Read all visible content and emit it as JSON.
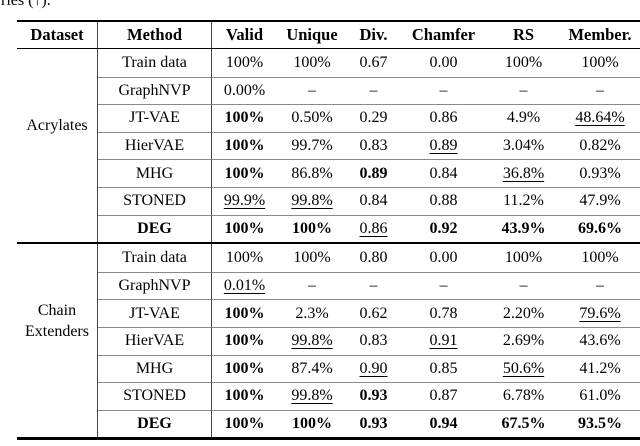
{
  "page": {
    "caption_fragment": "ries (↑)."
  },
  "table": {
    "colors": {
      "text": "#000000",
      "rule": "#000000",
      "inner_line": "#8a8a8a",
      "background": "#ffffff"
    },
    "headers": [
      "Dataset",
      "Method",
      "Valid",
      "Unique",
      "Div.",
      "Chamfer",
      "RS",
      "Member."
    ],
    "dash": "–",
    "sections": [
      {
        "dataset": "Acrylates",
        "rows": [
          {
            "method": "Train data",
            "cells": [
              {
                "v": "100%"
              },
              {
                "v": "100%"
              },
              {
                "v": "0.67"
              },
              {
                "v": "0.00"
              },
              {
                "v": "100%"
              },
              {
                "v": "100%"
              }
            ]
          },
          {
            "method": "GraphNVP",
            "cells": [
              {
                "v": "0.00%"
              },
              {
                "v": "–"
              },
              {
                "v": "–"
              },
              {
                "v": "–"
              },
              {
                "v": "–"
              },
              {
                "v": "–"
              }
            ]
          },
          {
            "method": "JT-VAE",
            "cells": [
              {
                "v": "100%",
                "b": true
              },
              {
                "v": "0.50%"
              },
              {
                "v": "0.29"
              },
              {
                "v": "0.86"
              },
              {
                "v": "4.9%"
              },
              {
                "v": "48.64%",
                "u": true
              }
            ]
          },
          {
            "method": "HierVAE",
            "cells": [
              {
                "v": "100%",
                "b": true
              },
              {
                "v": "99.7%"
              },
              {
                "v": "0.83"
              },
              {
                "v": "0.89",
                "u": true
              },
              {
                "v": "3.04%"
              },
              {
                "v": "0.82%"
              }
            ]
          },
          {
            "method": "MHG",
            "cells": [
              {
                "v": "100%",
                "b": true
              },
              {
                "v": "86.8%"
              },
              {
                "v": "0.89",
                "b": true
              },
              {
                "v": "0.84"
              },
              {
                "v": "36.8%",
                "u": true
              },
              {
                "v": "0.93%"
              }
            ]
          },
          {
            "method": "STONED",
            "cells": [
              {
                "v": "99.9%",
                "u": true
              },
              {
                "v": "99.8%",
                "u": true
              },
              {
                "v": "0.84"
              },
              {
                "v": "0.88"
              },
              {
                "v": "11.2%"
              },
              {
                "v": "47.9%"
              }
            ]
          },
          {
            "method": "DEG",
            "method_bold": true,
            "cells": [
              {
                "v": "100%",
                "b": true
              },
              {
                "v": "100%",
                "b": true
              },
              {
                "v": "0.86",
                "u": true
              },
              {
                "v": "0.92",
                "b": true
              },
              {
                "v": "43.9%",
                "b": true
              },
              {
                "v": "69.6%",
                "b": true
              }
            ]
          }
        ]
      },
      {
        "dataset": "Chain\nExtenders",
        "rows": [
          {
            "method": "Train data",
            "cells": [
              {
                "v": "100%"
              },
              {
                "v": "100%"
              },
              {
                "v": "0.80"
              },
              {
                "v": "0.00"
              },
              {
                "v": "100%"
              },
              {
                "v": "100%"
              }
            ]
          },
          {
            "method": "GraphNVP",
            "cells": [
              {
                "v": "0.01%",
                "u": true
              },
              {
                "v": "–"
              },
              {
                "v": "–"
              },
              {
                "v": "–"
              },
              {
                "v": "–"
              },
              {
                "v": "–"
              }
            ]
          },
          {
            "method": "JT-VAE",
            "cells": [
              {
                "v": "100%",
                "b": true
              },
              {
                "v": "2.3%"
              },
              {
                "v": "0.62"
              },
              {
                "v": "0.78"
              },
              {
                "v": "2.20%"
              },
              {
                "v": "79.6%",
                "u": true
              }
            ]
          },
          {
            "method": "HierVAE",
            "cells": [
              {
                "v": "100%",
                "b": true
              },
              {
                "v": "99.8%",
                "u": true
              },
              {
                "v": "0.83"
              },
              {
                "v": "0.91",
                "u": true
              },
              {
                "v": "2.69%"
              },
              {
                "v": "43.6%"
              }
            ]
          },
          {
            "method": "MHG",
            "cells": [
              {
                "v": "100%",
                "b": true
              },
              {
                "v": "87.4%"
              },
              {
                "v": "0.90",
                "u": true
              },
              {
                "v": "0.85"
              },
              {
                "v": "50.6%",
                "u": true
              },
              {
                "v": "41.2%"
              }
            ]
          },
          {
            "method": "STONED",
            "cells": [
              {
                "v": "100%",
                "b": true
              },
              {
                "v": "99.8%",
                "u": true
              },
              {
                "v": "0.93",
                "b": true
              },
              {
                "v": "0.87"
              },
              {
                "v": "6.78%"
              },
              {
                "v": "61.0%"
              }
            ]
          },
          {
            "method": "DEG",
            "method_bold": true,
            "cells": [
              {
                "v": "100%",
                "b": true
              },
              {
                "v": "100%",
                "b": true
              },
              {
                "v": "0.93",
                "b": true
              },
              {
                "v": "0.94",
                "b": true
              },
              {
                "v": "67.5%",
                "b": true
              },
              {
                "v": "93.5%",
                "b": true
              }
            ]
          }
        ]
      }
    ]
  }
}
